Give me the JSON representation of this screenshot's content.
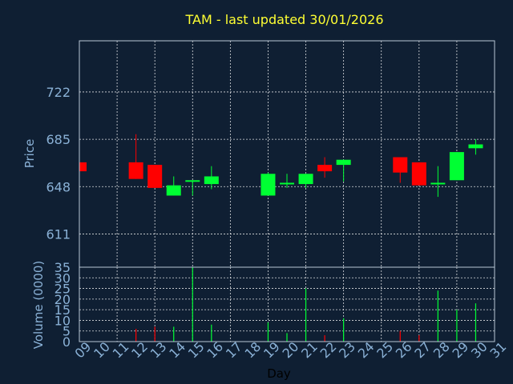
{
  "chart_data": [
    {
      "type": "candlestick",
      "title": "TAM - last updated 30/01/2026",
      "ylabel": "Price",
      "ylim": [
        585,
        762
      ],
      "yticks": [
        611,
        648,
        685,
        722
      ],
      "x": [
        "09",
        "10",
        "11",
        "12",
        "13",
        "14",
        "15",
        "16",
        "17",
        "18",
        "19",
        "20",
        "21",
        "22",
        "23",
        "24",
        "25",
        "26",
        "27",
        "28",
        "29",
        "30",
        "31"
      ],
      "candles": [
        {
          "day": "09",
          "open": 667,
          "close": 660,
          "high": 667,
          "low": 660
        },
        {
          "day": "12",
          "open": 667,
          "close": 654,
          "high": 689,
          "low": 654
        },
        {
          "day": "13",
          "open": 665,
          "close": 647,
          "high": 665,
          "low": 647
        },
        {
          "day": "14",
          "open": 641,
          "close": 649,
          "high": 656,
          "low": 641
        },
        {
          "day": "15",
          "open": 652,
          "close": 653,
          "high": 653,
          "low": 641
        },
        {
          "day": "16",
          "open": 650,
          "close": 656,
          "high": 664,
          "low": 646
        },
        {
          "day": "19",
          "open": 641,
          "close": 658,
          "high": 659,
          "low": 641
        },
        {
          "day": "20",
          "open": 650,
          "close": 651,
          "high": 658,
          "low": 647
        },
        {
          "day": "21",
          "open": 650,
          "close": 658,
          "high": 658,
          "low": 647
        },
        {
          "day": "22",
          "open": 665,
          "close": 660,
          "high": 671,
          "low": 655
        },
        {
          "day": "23",
          "open": 665,
          "close": 669,
          "high": 669,
          "low": 652
        },
        {
          "day": "26",
          "open": 671,
          "close": 659,
          "high": 671,
          "low": 651
        },
        {
          "day": "27",
          "open": 667,
          "close": 649,
          "high": 667,
          "low": 649
        },
        {
          "day": "28",
          "open": 650,
          "close": 651,
          "high": 664,
          "low": 640
        },
        {
          "day": "29",
          "open": 653,
          "close": 675,
          "high": 675,
          "low": 653
        },
        {
          "day": "30",
          "open": 678,
          "close": 681,
          "high": 685,
          "low": 673
        }
      ],
      "up_color": "#00ff33",
      "down_color": "#ff0000",
      "grid": true
    },
    {
      "type": "bar",
      "ylabel": "Volume (0000)",
      "xlabel": "Day",
      "ylim": [
        0,
        35
      ],
      "yticks": [
        0,
        5,
        10,
        15,
        20,
        25,
        30,
        35
      ],
      "x": [
        "09",
        "10",
        "11",
        "12",
        "13",
        "14",
        "15",
        "16",
        "17",
        "18",
        "19",
        "20",
        "21",
        "22",
        "23",
        "24",
        "25",
        "26",
        "27",
        "28",
        "29",
        "30",
        "31"
      ],
      "values": [
        {
          "day": "12",
          "volume": 6,
          "direction": "down"
        },
        {
          "day": "13",
          "volume": 7,
          "direction": "down"
        },
        {
          "day": "14",
          "volume": 7,
          "direction": "up"
        },
        {
          "day": "15",
          "volume": 35,
          "direction": "up"
        },
        {
          "day": "16",
          "volume": 8,
          "direction": "up"
        },
        {
          "day": "19",
          "volume": 9,
          "direction": "up"
        },
        {
          "day": "20",
          "volume": 4,
          "direction": "up"
        },
        {
          "day": "21",
          "volume": 25,
          "direction": "up"
        },
        {
          "day": "22",
          "volume": 3,
          "direction": "down"
        },
        {
          "day": "23",
          "volume": 11,
          "direction": "up"
        },
        {
          "day": "26",
          "volume": 5,
          "direction": "down"
        },
        {
          "day": "27",
          "volume": 3,
          "direction": "down"
        },
        {
          "day": "28",
          "volume": 24,
          "direction": "up"
        },
        {
          "day": "29",
          "volume": 15,
          "direction": "up"
        },
        {
          "day": "30",
          "volume": 18,
          "direction": "up"
        }
      ],
      "grid": true
    }
  ]
}
